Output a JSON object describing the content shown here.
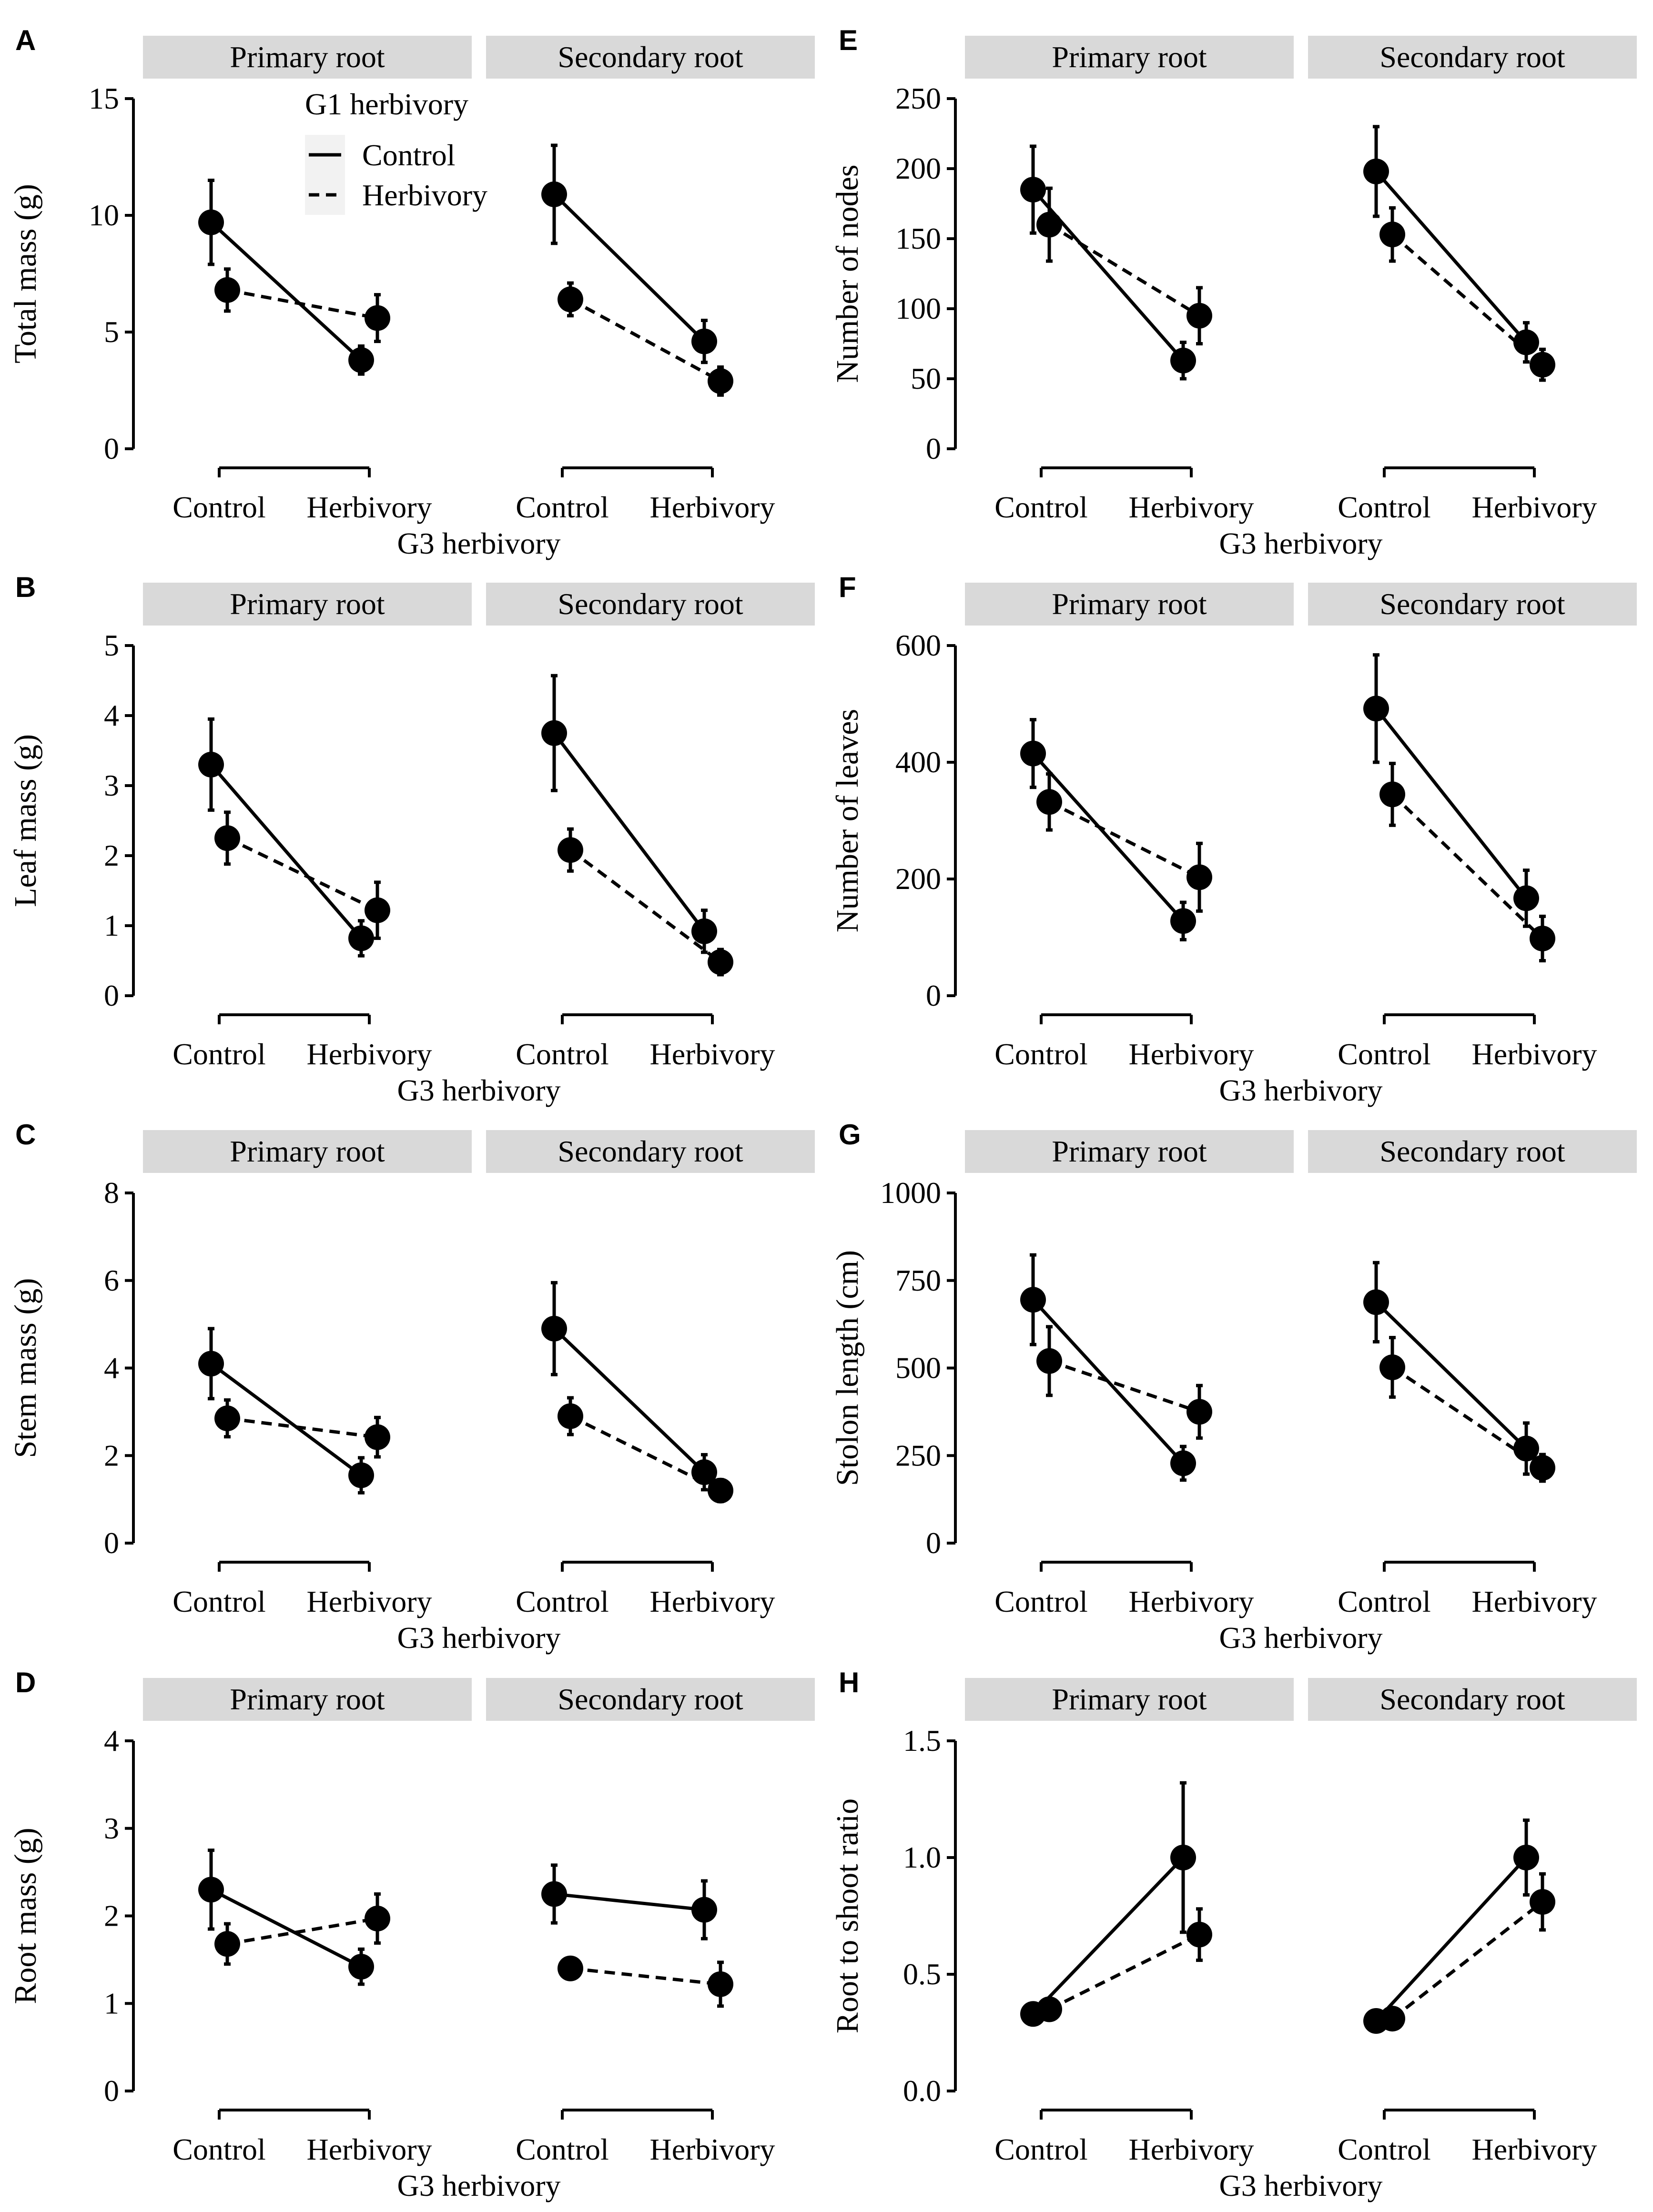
{
  "figure": {
    "x_axis_title": "G3 herbivory",
    "facet_labels": [
      "Primary root",
      "Secondary root"
    ],
    "x_categories": [
      "Control",
      "Herbivory"
    ],
    "legend": {
      "title": "G1 herbivory",
      "position": "inside top-left of panel A",
      "entries": [
        {
          "label": "Control",
          "line": "solid"
        },
        {
          "label": "Herbivory",
          "line": "dashed"
        }
      ]
    },
    "colors": {
      "strip": "#d9d9d9",
      "ink": "#000000",
      "background": "#ffffff"
    }
  },
  "chart_data": [
    {
      "panel": "A",
      "type": "line",
      "ylabel": "Total mass (g)",
      "ylim": [
        0,
        15
      ],
      "yticks": [
        0,
        5,
        10,
        15
      ],
      "ytick_labels": [
        "0",
        "5",
        "10",
        "15"
      ],
      "show_legend": true,
      "facets": [
        {
          "facet": "Primary root",
          "series": [
            {
              "name": "Control",
              "values": [
                9.7,
                3.8
              ],
              "errors": [
                1.8,
                0.6
              ]
            },
            {
              "name": "Herbivory",
              "values": [
                6.8,
                5.6
              ],
              "errors": [
                0.9,
                1.0
              ]
            }
          ]
        },
        {
          "facet": "Secondary root",
          "series": [
            {
              "name": "Control",
              "values": [
                10.9,
                4.6
              ],
              "errors": [
                2.1,
                0.9
              ]
            },
            {
              "name": "Herbivory",
              "values": [
                6.4,
                2.9
              ],
              "errors": [
                0.7,
                0.6
              ]
            }
          ]
        }
      ]
    },
    {
      "panel": "B",
      "type": "line",
      "ylabel": "Leaf mass (g)",
      "ylim": [
        0,
        5
      ],
      "yticks": [
        0,
        1,
        2,
        3,
        4,
        5
      ],
      "ytick_labels": [
        "0",
        "1",
        "2",
        "3",
        "4",
        "5"
      ],
      "show_legend": false,
      "facets": [
        {
          "facet": "Primary root",
          "series": [
            {
              "name": "Control",
              "values": [
                3.3,
                0.82
              ],
              "errors": [
                0.65,
                0.25
              ]
            },
            {
              "name": "Herbivory",
              "values": [
                2.25,
                1.22
              ],
              "errors": [
                0.37,
                0.4
              ]
            }
          ]
        },
        {
          "facet": "Secondary root",
          "series": [
            {
              "name": "Control",
              "values": [
                3.75,
                0.92
              ],
              "errors": [
                0.82,
                0.3
              ]
            },
            {
              "name": "Herbivory",
              "values": [
                2.08,
                0.48
              ],
              "errors": [
                0.3,
                0.18
              ]
            }
          ]
        }
      ]
    },
    {
      "panel": "C",
      "type": "line",
      "ylabel": "Stem mass (g)",
      "ylim": [
        0,
        8
      ],
      "yticks": [
        0,
        2,
        4,
        6,
        8
      ],
      "ytick_labels": [
        "0",
        "2",
        "4",
        "6",
        "8"
      ],
      "show_legend": false,
      "facets": [
        {
          "facet": "Primary root",
          "series": [
            {
              "name": "Control",
              "values": [
                4.1,
                1.55
              ],
              "errors": [
                0.8,
                0.4
              ]
            },
            {
              "name": "Herbivory",
              "values": [
                2.85,
                2.42
              ],
              "errors": [
                0.42,
                0.45
              ]
            }
          ]
        },
        {
          "facet": "Secondary root",
          "series": [
            {
              "name": "Control",
              "values": [
                4.9,
                1.62
              ],
              "errors": [
                1.05,
                0.4
              ]
            },
            {
              "name": "Herbivory",
              "values": [
                2.9,
                1.2
              ],
              "errors": [
                0.42,
                0.25
              ]
            }
          ]
        }
      ]
    },
    {
      "panel": "D",
      "type": "line",
      "ylabel": "Root mass (g)",
      "ylim": [
        0,
        4
      ],
      "yticks": [
        0,
        1,
        2,
        3,
        4
      ],
      "ytick_labels": [
        "0",
        "1",
        "2",
        "3",
        "4"
      ],
      "show_legend": false,
      "facets": [
        {
          "facet": "Primary root",
          "series": [
            {
              "name": "Control",
              "values": [
                2.3,
                1.42
              ],
              "errors": [
                0.45,
                0.2
              ]
            },
            {
              "name": "Herbivory",
              "values": [
                1.68,
                1.97
              ],
              "errors": [
                0.23,
                0.28
              ]
            }
          ]
        },
        {
          "facet": "Secondary root",
          "series": [
            {
              "name": "Control",
              "values": [
                2.25,
                2.07
              ],
              "errors": [
                0.33,
                0.33
              ]
            },
            {
              "name": "Herbivory",
              "values": [
                1.4,
                1.22
              ],
              "errors": [
                0.1,
                0.25
              ]
            }
          ]
        }
      ]
    },
    {
      "panel": "E",
      "type": "line",
      "ylabel": "Number of nodes",
      "ylim": [
        0,
        250
      ],
      "yticks": [
        0,
        50,
        100,
        150,
        200,
        250
      ],
      "ytick_labels": [
        "0",
        "50",
        "100",
        "150",
        "200",
        "250"
      ],
      "show_legend": false,
      "facets": [
        {
          "facet": "Primary root",
          "series": [
            {
              "name": "Control",
              "values": [
                185,
                63
              ],
              "errors": [
                31,
                13
              ]
            },
            {
              "name": "Herbivory",
              "values": [
                160,
                95
              ],
              "errors": [
                26,
                20
              ]
            }
          ]
        },
        {
          "facet": "Secondary root",
          "series": [
            {
              "name": "Control",
              "values": [
                198,
                76
              ],
              "errors": [
                32,
                14
              ]
            },
            {
              "name": "Herbivory",
              "values": [
                153,
                60
              ],
              "errors": [
                19,
                11
              ]
            }
          ]
        }
      ]
    },
    {
      "panel": "F",
      "type": "line",
      "ylabel": "Number of leaves",
      "ylim": [
        0,
        600
      ],
      "yticks": [
        0,
        200,
        400,
        600
      ],
      "ytick_labels": [
        "0",
        "200",
        "400",
        "600"
      ],
      "show_legend": false,
      "facets": [
        {
          "facet": "Primary root",
          "series": [
            {
              "name": "Control",
              "values": [
                415,
                128
              ],
              "errors": [
                58,
                32
              ]
            },
            {
              "name": "Herbivory",
              "values": [
                332,
                203
              ],
              "errors": [
                48,
                58
              ]
            }
          ]
        },
        {
          "facet": "Secondary root",
          "series": [
            {
              "name": "Control",
              "values": [
                492,
                167
              ],
              "errors": [
                92,
                48
              ]
            },
            {
              "name": "Herbivory",
              "values": [
                345,
                98
              ],
              "errors": [
                53,
                38
              ]
            }
          ]
        }
      ]
    },
    {
      "panel": "G",
      "type": "line",
      "ylabel": "Stolon length (cm)",
      "ylim": [
        0,
        1000
      ],
      "yticks": [
        0,
        250,
        500,
        750,
        1000
      ],
      "ytick_labels": [
        "0",
        "250",
        "500",
        "750",
        "1000"
      ],
      "show_legend": false,
      "facets": [
        {
          "facet": "Primary root",
          "series": [
            {
              "name": "Control",
              "values": [
                695,
                228
              ],
              "errors": [
                128,
                48
              ]
            },
            {
              "name": "Herbivory",
              "values": [
                520,
                375
              ],
              "errors": [
                98,
                75
              ]
            }
          ]
        },
        {
          "facet": "Secondary root",
          "series": [
            {
              "name": "Control",
              "values": [
                688,
                270
              ],
              "errors": [
                113,
                73
              ]
            },
            {
              "name": "Herbivory",
              "values": [
                502,
                215
              ],
              "errors": [
                85,
                38
              ]
            }
          ]
        }
      ]
    },
    {
      "panel": "H",
      "type": "line",
      "ylabel": "Root to shoot ratio",
      "ylim": [
        0,
        1.5
      ],
      "yticks": [
        0,
        0.5,
        1,
        1.5
      ],
      "ytick_labels": [
        "0.0",
        "0.5",
        "1.0",
        "1.5"
      ],
      "show_legend": false,
      "facets": [
        {
          "facet": "Primary root",
          "series": [
            {
              "name": "Control",
              "values": [
                0.33,
                1.0
              ],
              "errors": [
                0.02,
                0.32
              ]
            },
            {
              "name": "Herbivory",
              "values": [
                0.35,
                0.67
              ],
              "errors": [
                0.02,
                0.11
              ]
            }
          ]
        },
        {
          "facet": "Secondary root",
          "series": [
            {
              "name": "Control",
              "values": [
                0.3,
                1.0
              ],
              "errors": [
                0.02,
                0.16
              ]
            },
            {
              "name": "Herbivory",
              "values": [
                0.31,
                0.81
              ],
              "errors": [
                0.02,
                0.12
              ]
            }
          ]
        }
      ]
    }
  ]
}
